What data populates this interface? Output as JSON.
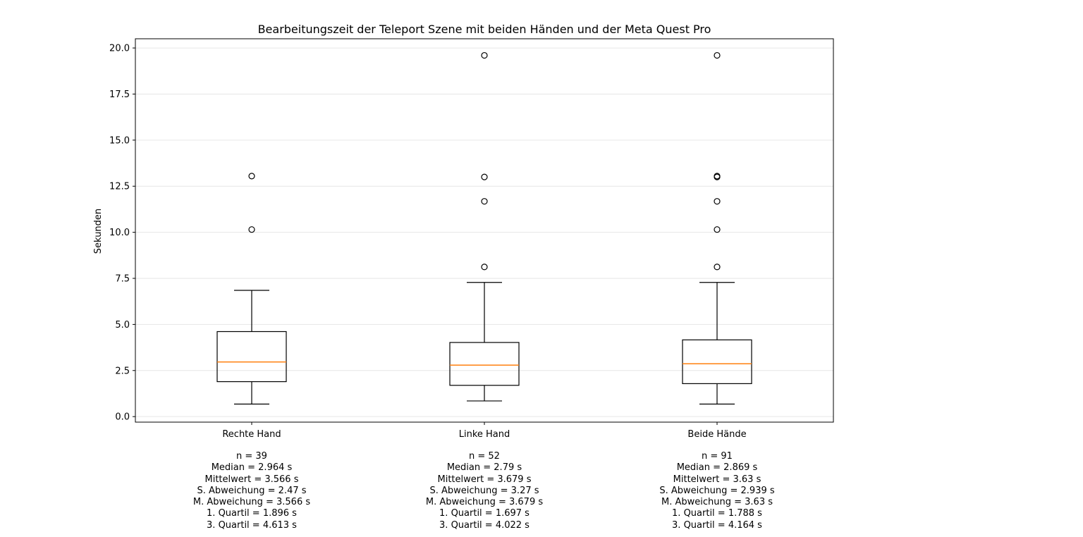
{
  "chart_data": {
    "type": "box",
    "title": "Bearbeitungszeit der Teleport Szene mit beiden Händen und der Meta Quest Pro",
    "xlabel": "",
    "ylabel": "Sekunden",
    "ylim": [
      -0.3,
      20.5
    ],
    "yticks": [
      "0.0",
      "2.5",
      "5.0",
      "7.5",
      "10.0",
      "12.5",
      "15.0",
      "17.5",
      "20.0"
    ],
    "grid": "horizontal",
    "colors": {
      "box": "#000000",
      "median": "#ff7f0e",
      "grid": "#e6e6e6"
    },
    "categories": [
      "Rechte Hand",
      "Linke Hand",
      "Beide Hände"
    ],
    "boxes": [
      {
        "label": "Rechte Hand",
        "whisker_low": 0.68,
        "q1": 1.896,
        "median": 2.964,
        "q3": 4.613,
        "whisker_high": 6.85,
        "outliers": [
          10.15,
          13.05
        ]
      },
      {
        "label": "Linke Hand",
        "whisker_low": 0.85,
        "q1": 1.697,
        "median": 2.79,
        "q3": 4.022,
        "whisker_high": 7.28,
        "outliers": [
          8.12,
          11.68,
          13.0,
          19.6
        ]
      },
      {
        "label": "Beide Hände",
        "whisker_low": 0.68,
        "q1": 1.788,
        "median": 2.869,
        "q3": 4.164,
        "whisker_high": 7.28,
        "outliers": [
          8.12,
          10.15,
          11.68,
          13.0,
          13.05,
          19.6
        ]
      }
    ],
    "stats": [
      [
        "n = 39",
        "Median = 2.964 s",
        "Mittelwert = 3.566 s",
        "S. Abweichung = 2.47 s",
        "M. Abweichung = 3.566 s",
        "1. Quartil = 1.896 s",
        "3. Quartil = 4.613 s"
      ],
      [
        "n = 52",
        "Median = 2.79 s",
        "Mittelwert = 3.679 s",
        "S. Abweichung = 3.27 s",
        "M. Abweichung = 3.679 s",
        "1. Quartil = 1.697 s",
        "3. Quartil = 4.022 s"
      ],
      [
        "n = 91",
        "Median = 2.869 s",
        "Mittelwert = 3.63 s",
        "S. Abweichung = 2.939 s",
        "M. Abweichung = 3.63 s",
        "1. Quartil = 1.788 s",
        "3. Quartil = 4.164 s"
      ]
    ]
  }
}
